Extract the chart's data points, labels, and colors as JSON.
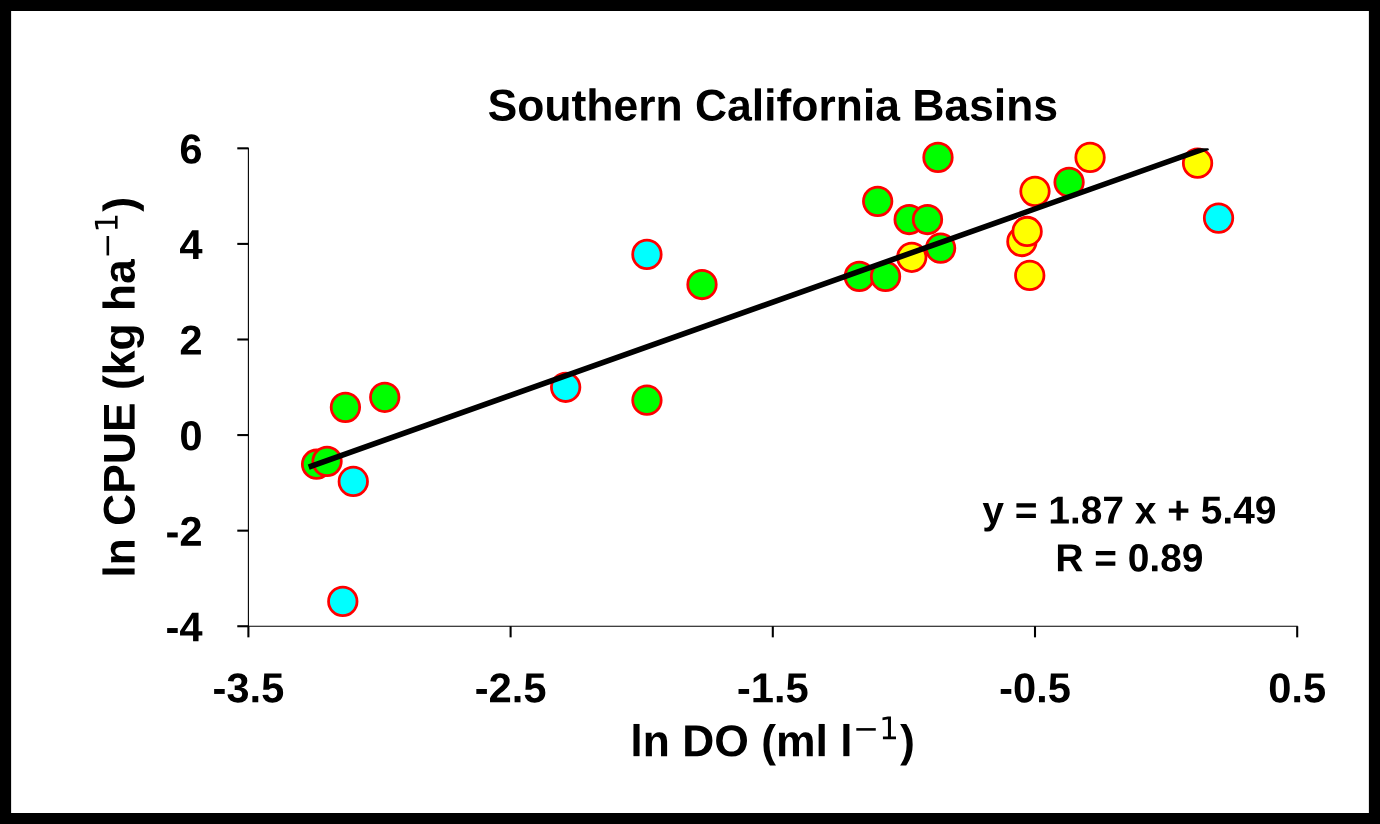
{
  "chart_data": {
    "type": "scatter",
    "title": "Southern California Basins",
    "xlabel": "ln DO (ml l$^{−1}$)",
    "ylabel": "ln CPUE (kg ha$^{−1}$)",
    "xlim": [
      -3.5,
      0.5
    ],
    "xticks": [
      -3.5,
      -2.5,
      -1.5,
      -0.5,
      0.5
    ],
    "ylim": [
      -4,
      6
    ],
    "yticks": [
      -4,
      -2,
      0,
      2,
      4,
      6
    ],
    "grid": false,
    "legend": false,
    "marker": "circle",
    "series": [
      {
        "color": "#00ff00",
        "x": [
          -3.24,
          -3.2,
          -3.13,
          -2.98,
          -1.98,
          -1.77,
          -1.17,
          -1.07,
          -1.1,
          -0.98,
          -0.91,
          -0.87,
          -0.86,
          -0.37
        ],
        "values": [
          -0.61,
          -0.55,
          0.58,
          0.79,
          0.73,
          3.15,
          3.32,
          3.32,
          4.89,
          4.51,
          4.51,
          5.81,
          3.91,
          5.29
        ]
      },
      {
        "color": "#00ffff",
        "x": [
          -3.14,
          -3.1,
          -2.29,
          -1.98,
          0.2
        ],
        "values": [
          -3.48,
          -0.97,
          1.0,
          3.78,
          4.54
        ]
      },
      {
        "color": "#ffff00",
        "x": [
          -0.97,
          -0.55,
          -0.53,
          -0.5,
          -0.52,
          -0.29,
          0.12
        ],
        "values": [
          3.72,
          4.05,
          4.26,
          5.1,
          3.34,
          5.81,
          5.69
        ]
      },
      {
        "type": "line",
        "color": "#000000",
        "marker": "none",
        "x": [
          -3.26,
          0.15
        ],
        "values": [
          -0.65,
          6.0
        ]
      }
    ],
    "annotations": [
      "y = 1.87 x + 5.49",
      "R = 0.89"
    ]
  }
}
